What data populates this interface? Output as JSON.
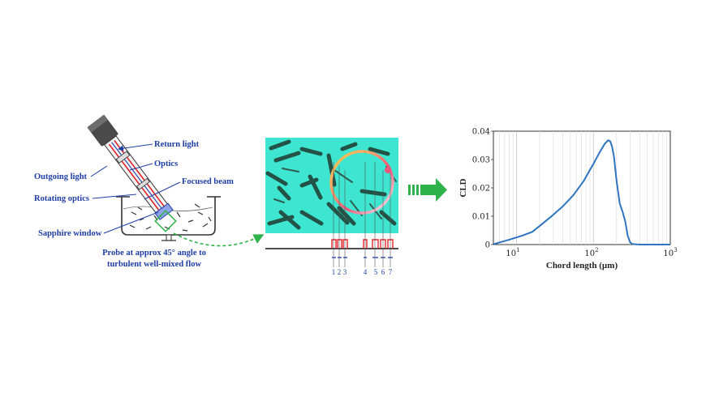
{
  "probe_diagram": {
    "labels": {
      "return_light": "Return light",
      "optics": "Optics",
      "outgoing_light": "Outgoing light",
      "focused_beam": "Focused beam",
      "rotating_optics": "Rotating optics",
      "sapphire_window": "Sapphire window"
    },
    "caption_line1": "Probe at approx 45° angle to",
    "caption_line2": "turbulent well-mixed flow"
  },
  "chord_illustration": {
    "chord_numbers": [
      "1",
      "2",
      "3",
      "4",
      "5",
      "6",
      "7"
    ]
  },
  "arrow": {
    "color": "#2db34a"
  },
  "chart_data": {
    "type": "line",
    "xscale": "log",
    "xlim": [
      5,
      1000
    ],
    "ylim": [
      0,
      0.04
    ],
    "xlabel": "Chord length (µm)",
    "ylabel": "CLD",
    "xticks": [
      {
        "base": "10",
        "exp": "1"
      },
      {
        "base": "10",
        "exp": "2"
      },
      {
        "base": "10",
        "exp": "3"
      }
    ],
    "yticks": [
      "0",
      "0.01",
      "0.02",
      "0.03",
      "0.04"
    ],
    "yticks_values": [
      0,
      0.01,
      0.02,
      0.03,
      0.04
    ],
    "grid": true,
    "line_color": "#2f74c0",
    "series": [
      {
        "x": [
          5,
          8,
          12,
          16,
          22,
          30,
          40,
          55,
          75,
          100,
          120,
          140,
          155,
          165,
          175,
          185,
          200,
          220,
          240,
          260,
          280,
          300,
          320,
          350,
          400,
          500,
          700,
          1000
        ],
        "y": [
          0.0001,
          0.0017,
          0.0032,
          0.0045,
          0.0075,
          0.0105,
          0.0135,
          0.0175,
          0.0225,
          0.0285,
          0.0325,
          0.0355,
          0.0368,
          0.0365,
          0.0345,
          0.031,
          0.0225,
          0.0145,
          0.0115,
          0.008,
          0.003,
          0.0008,
          0.0002,
          0.0001,
          0.0,
          0.0,
          0.0,
          0.0
        ]
      }
    ]
  }
}
